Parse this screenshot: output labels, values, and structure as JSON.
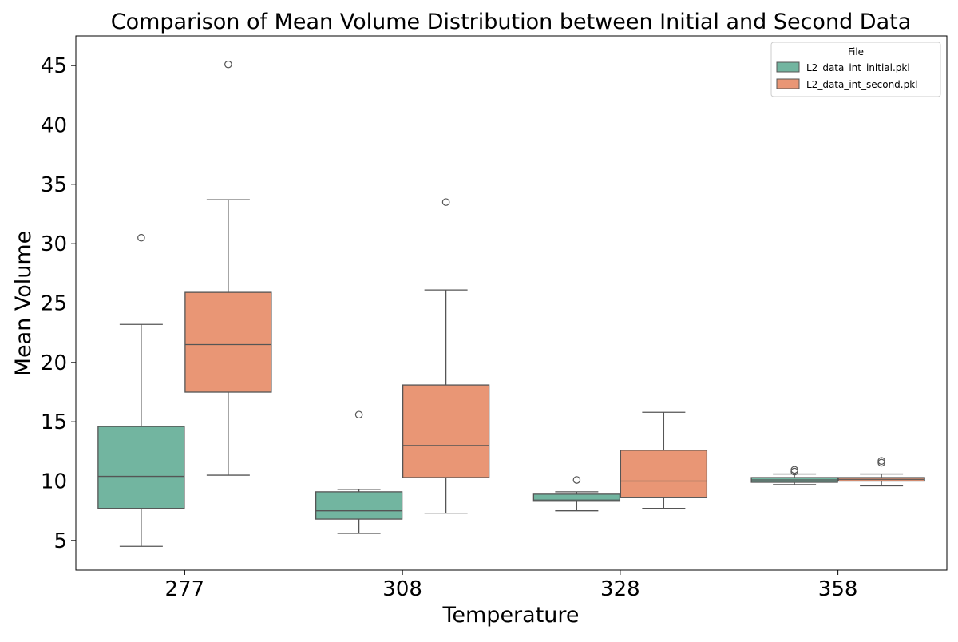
{
  "chart_data": {
    "type": "box",
    "title": "Comparison of Mean Volume Distribution between Initial and Second Data",
    "xlabel": "Temperature",
    "ylabel": "Mean Volume",
    "categories": [
      "277",
      "308",
      "328",
      "358"
    ],
    "ylim": [
      2.5,
      47.5
    ],
    "yticks": [
      5,
      10,
      15,
      20,
      25,
      30,
      35,
      40,
      45
    ],
    "grid": false,
    "legend": {
      "title": "File",
      "placement": "top-right",
      "entries": [
        "L2_data_int_initial.pkl",
        "L2_data_int_second.pkl"
      ]
    },
    "series": [
      {
        "name": "L2_data_int_initial.pkl",
        "color": "#72b5a0",
        "boxes": [
          {
            "whislo": 4.5,
            "q1": 7.7,
            "med": 10.4,
            "q3": 14.6,
            "whishi": 23.2,
            "fliers": [
              30.5
            ]
          },
          {
            "whislo": 5.6,
            "q1": 6.8,
            "med": 7.5,
            "q3": 9.1,
            "whishi": 9.3,
            "fliers": [
              15.6
            ]
          },
          {
            "whislo": 7.5,
            "q1": 8.3,
            "med": 8.4,
            "q3": 8.9,
            "whishi": 9.1,
            "fliers": [
              10.1
            ]
          },
          {
            "whislo": 9.7,
            "q1": 9.9,
            "med": 10.1,
            "q3": 10.3,
            "whishi": 10.6,
            "fliers": [
              10.8,
              10.95
            ]
          }
        ]
      },
      {
        "name": "L2_data_int_second.pkl",
        "color": "#e99675",
        "boxes": [
          {
            "whislo": 10.5,
            "q1": 17.5,
            "med": 21.5,
            "q3": 25.9,
            "whishi": 33.7,
            "fliers": [
              45.1
            ]
          },
          {
            "whislo": 7.3,
            "q1": 10.3,
            "med": 13.0,
            "q3": 18.1,
            "whishi": 26.1,
            "fliers": [
              33.5
            ]
          },
          {
            "whislo": 7.7,
            "q1": 8.6,
            "med": 10.0,
            "q3": 12.6,
            "whishi": 15.8,
            "fliers": []
          },
          {
            "whislo": 9.6,
            "q1": 10.0,
            "med": 10.15,
            "q3": 10.3,
            "whishi": 10.6,
            "fliers": [
              11.55,
              11.7
            ]
          }
        ]
      }
    ]
  }
}
